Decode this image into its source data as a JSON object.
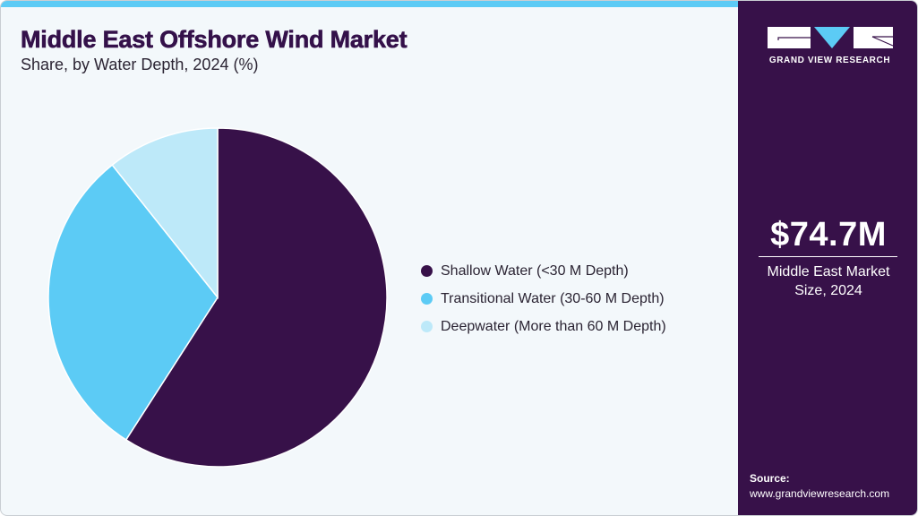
{
  "header": {
    "title": "Middle East Offshore Wind Market",
    "subtitle": "Share, by Water Depth, 2024 (%)"
  },
  "colors": {
    "accent_bar": "#5ccbf5",
    "panel_bg": "#371149",
    "canvas_bg": "#f3f8fb",
    "title": "#34114a"
  },
  "legend": {
    "items": [
      {
        "label": "Shallow Water (<30 M Depth)",
        "color": "#371149"
      },
      {
        "label": "Transitional Water (30-60 M Depth)",
        "color": "#5ccbf5"
      },
      {
        "label": "Deepwater (More than 60 M Depth)",
        "color": "#bde9f9"
      }
    ]
  },
  "side_panel": {
    "logo_text": "GRAND VIEW RESEARCH",
    "market_value": "$74.7M",
    "market_label_line1": "Middle East Market",
    "market_label_line2": "Size, 2024",
    "source_label": "Source:",
    "source_url": "www.grandviewresearch.com"
  },
  "chart_data": {
    "type": "pie",
    "title": "Middle East Offshore Wind Market",
    "subtitle": "Share, by Water Depth, 2024 (%)",
    "categories": [
      "Shallow Water (<30 M Depth)",
      "Transitional Water (30-60 M Depth)",
      "Deepwater (More than 60 M Depth)"
    ],
    "values": [
      59.1,
      30.2,
      10.7
    ],
    "colors": [
      "#371149",
      "#5ccbf5",
      "#bde9f9"
    ],
    "start_angle": "12 o'clock, clockwise",
    "legend_position": "right",
    "data_labels": false
  }
}
